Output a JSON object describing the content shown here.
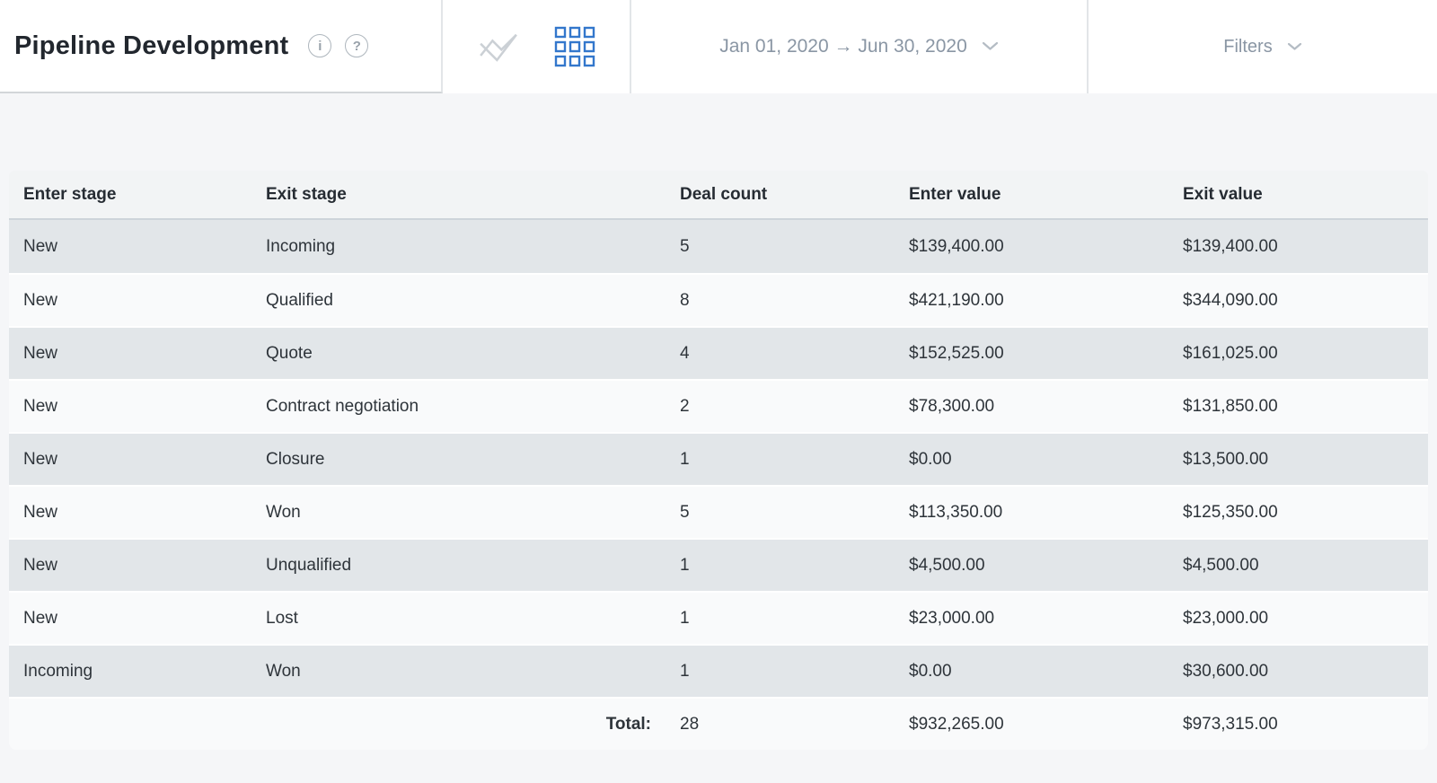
{
  "header": {
    "title": "Pipeline Development",
    "info_glyph": "i",
    "help_glyph": "?",
    "view_toggles": {
      "chart_view_active": false,
      "table_view_active": true
    },
    "date_range": "Jan 01, 2020 → Jun 30, 2020",
    "filters_label": "Filters"
  },
  "colors": {
    "accent_blue": "#3377cc",
    "muted_text": "#8a96a4",
    "title_text": "#22272e",
    "header_row_bg": "#f2f4f5",
    "row_gray": "#e2e6e9",
    "row_light": "#f9fafb",
    "page_bg": "#f5f6f8"
  },
  "table": {
    "columns": [
      "Enter stage",
      "Exit stage",
      "Deal count",
      "Enter value",
      "Exit value"
    ],
    "rows": [
      {
        "enter_stage": "New",
        "exit_stage": "Incoming",
        "deal_count": "5",
        "enter_value": "$139,400.00",
        "exit_value": "$139,400.00"
      },
      {
        "enter_stage": "New",
        "exit_stage": "Qualified",
        "deal_count": "8",
        "enter_value": "$421,190.00",
        "exit_value": "$344,090.00"
      },
      {
        "enter_stage": "New",
        "exit_stage": "Quote",
        "deal_count": "4",
        "enter_value": "$152,525.00",
        "exit_value": "$161,025.00"
      },
      {
        "enter_stage": "New",
        "exit_stage": "Contract negotiation",
        "deal_count": "2",
        "enter_value": "$78,300.00",
        "exit_value": "$131,850.00"
      },
      {
        "enter_stage": "New",
        "exit_stage": "Closure",
        "deal_count": "1",
        "enter_value": "$0.00",
        "exit_value": "$13,500.00"
      },
      {
        "enter_stage": "New",
        "exit_stage": "Won",
        "deal_count": "5",
        "enter_value": "$113,350.00",
        "exit_value": "$125,350.00"
      },
      {
        "enter_stage": "New",
        "exit_stage": "Unqualified",
        "deal_count": "1",
        "enter_value": "$4,500.00",
        "exit_value": "$4,500.00"
      },
      {
        "enter_stage": "New",
        "exit_stage": "Lost",
        "deal_count": "1",
        "enter_value": "$23,000.00",
        "exit_value": "$23,000.00"
      },
      {
        "enter_stage": "Incoming",
        "exit_stage": "Won",
        "deal_count": "1",
        "enter_value": "$0.00",
        "exit_value": "$30,600.00"
      }
    ],
    "total": {
      "label": "Total:",
      "deal_count": "28",
      "enter_value": "$932,265.00",
      "exit_value": "$973,315.00"
    }
  }
}
